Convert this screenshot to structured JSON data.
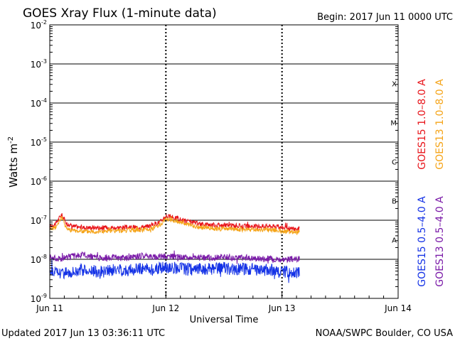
{
  "chart_data": {
    "type": "line",
    "title": "GOES Xray Flux (1-minute data)",
    "begin_label": "Begin:  2017 Jun 11 0000 UTC",
    "xlabel": "Universal Time",
    "ylabel": "Watts m",
    "ylabel_sup": "-2",
    "yscale": "log",
    "ylim": [
      1e-09,
      0.01
    ],
    "xlim": [
      0,
      3
    ],
    "y_ticks": [
      {
        "base": "10",
        "exp": "-2",
        "value": 0.01
      },
      {
        "base": "10",
        "exp": "-3",
        "value": 0.001
      },
      {
        "base": "10",
        "exp": "-4",
        "value": 0.0001
      },
      {
        "base": "10",
        "exp": "-5",
        "value": 1e-05
      },
      {
        "base": "10",
        "exp": "-6",
        "value": 1e-06
      },
      {
        "base": "10",
        "exp": "-7",
        "value": 1e-07
      },
      {
        "base": "10",
        "exp": "-8",
        "value": 1e-08
      },
      {
        "base": "10",
        "exp": "-9",
        "value": 1e-09
      }
    ],
    "x_ticks": [
      {
        "label": "Jun 11",
        "value": 0
      },
      {
        "label": "Jun 12",
        "value": 1
      },
      {
        "label": "Jun 13",
        "value": 2
      },
      {
        "label": "Jun 14",
        "value": 3
      }
    ],
    "flare_classes": [
      {
        "label": "X",
        "value": 0.000316
      },
      {
        "label": "M",
        "value": 3.16e-05
      },
      {
        "label": "C",
        "value": 3.16e-06
      },
      {
        "label": "B",
        "value": 3.16e-07
      },
      {
        "label": "A",
        "value": 3.16e-08
      }
    ],
    "series": [
      {
        "name": "GOES15 1.0–8.0 A",
        "color": "#e8141a",
        "x": [
          0,
          0.05,
          0.1,
          0.15,
          0.2,
          0.3,
          0.5,
          0.7,
          0.85,
          0.95,
          1.0,
          1.1,
          1.2,
          1.3,
          1.5,
          1.7,
          1.9,
          2.0,
          2.1,
          2.15
        ],
        "values": [
          7e-08,
          8e-08,
          1.4e-07,
          8e-08,
          7e-08,
          6.5e-08,
          6.5e-08,
          6.5e-08,
          7e-08,
          9e-08,
          1.3e-07,
          1.1e-07,
          9e-08,
          8e-08,
          7.5e-08,
          7e-08,
          7e-08,
          6.5e-08,
          6e-08,
          6e-08
        ]
      },
      {
        "name": "GOES13 1.0–8.0 A",
        "color": "#f5a418",
        "x": [
          0,
          0.05,
          0.1,
          0.15,
          0.2,
          0.3,
          0.5,
          0.7,
          0.85,
          0.95,
          1.0,
          1.1,
          1.2,
          1.3,
          1.5,
          1.7,
          1.9,
          2.0,
          2.1,
          2.15
        ],
        "values": [
          6e-08,
          6.5e-08,
          1.2e-07,
          6e-08,
          5.5e-08,
          5.2e-08,
          5.2e-08,
          5.5e-08,
          5.8e-08,
          7.5e-08,
          1.1e-07,
          9.5e-08,
          7.5e-08,
          6.5e-08,
          6e-08,
          5.8e-08,
          5.8e-08,
          5.3e-08,
          5e-08,
          5e-08
        ]
      },
      {
        "name": "GOES15 0.5–4.0 A",
        "color": "#1432e6",
        "x": [
          0,
          0.1,
          0.2,
          0.3,
          0.4,
          0.5,
          0.6,
          0.7,
          0.8,
          0.9,
          1.0,
          1.1,
          1.2,
          1.3,
          1.4,
          1.5,
          1.6,
          1.7,
          1.8,
          1.9,
          2.0,
          2.1,
          2.15
        ],
        "values": [
          5e-09,
          4.5e-09,
          5e-09,
          5.5e-09,
          4.8e-09,
          5e-09,
          5.5e-09,
          5.2e-09,
          6e-09,
          5.5e-09,
          6.5e-09,
          6e-09,
          5.5e-09,
          5.8e-09,
          5.5e-09,
          6e-09,
          5.5e-09,
          5.8e-09,
          5.2e-09,
          5.5e-09,
          4.8e-09,
          4.5e-09,
          5e-09
        ]
      },
      {
        "name": "GOES13 0.5–4.0 A",
        "color": "#7a1aa8",
        "x": [
          0,
          0.1,
          0.2,
          0.3,
          0.4,
          0.5,
          0.6,
          0.7,
          0.8,
          0.9,
          1.0,
          1.1,
          1.2,
          1.3,
          1.4,
          1.5,
          1.6,
          1.7,
          1.8,
          1.9,
          2.0,
          2.1,
          2.15
        ],
        "values": [
          1.1e-08,
          1.05e-08,
          1.2e-08,
          1.3e-08,
          1.1e-08,
          1.1e-08,
          1.1e-08,
          1.1e-08,
          1.25e-08,
          1.15e-08,
          1.2e-08,
          1.15e-08,
          1.1e-08,
          1.1e-08,
          1.1e-08,
          1.15e-08,
          1.1e-08,
          1.1e-08,
          1.05e-08,
          1.05e-08,
          1e-08,
          1e-08,
          1e-08
        ]
      }
    ],
    "footer_left": "Updated 2017 Jun 13 03:36:11 UTC",
    "footer_right": "NOAA/SWPC Boulder, CO USA"
  }
}
